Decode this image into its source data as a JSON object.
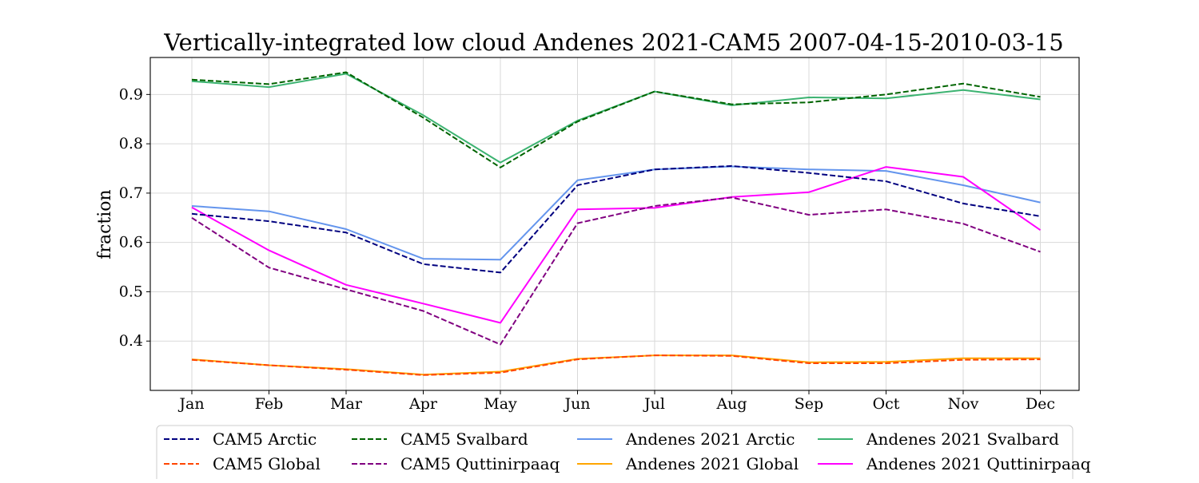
{
  "chart_data": {
    "type": "line",
    "title": "Vertically-integrated low cloud Andenes 2021-CAM5 2007-04-15-2010-03-15",
    "xlabel": "",
    "ylabel": "fraction",
    "categories": [
      "Jan",
      "Feb",
      "Mar",
      "Apr",
      "May",
      "Jun",
      "Jul",
      "Aug",
      "Sep",
      "Oct",
      "Nov",
      "Dec"
    ],
    "ylim": [
      0.3,
      0.975
    ],
    "yticks": [
      0.4,
      0.5,
      0.6,
      0.7,
      0.8,
      0.9
    ],
    "grid": true,
    "legend_placement": "bottom-center, outside plot",
    "series": [
      {
        "name": "CAM5 Arctic",
        "color": "#00007f",
        "dash": "dashed",
        "values": [
          0.658,
          0.643,
          0.62,
          0.556,
          0.539,
          0.716,
          0.748,
          0.755,
          0.741,
          0.724,
          0.679,
          0.653
        ]
      },
      {
        "name": "CAM5 Global",
        "color": "#ff4500",
        "dash": "dashed",
        "values": [
          0.362,
          0.351,
          0.342,
          0.331,
          0.336,
          0.363,
          0.371,
          0.37,
          0.355,
          0.355,
          0.362,
          0.363
        ]
      },
      {
        "name": "CAM5 Svalbard",
        "color": "#006400",
        "dash": "dashed",
        "values": [
          0.93,
          0.921,
          0.945,
          0.853,
          0.752,
          0.845,
          0.906,
          0.88,
          0.884,
          0.9,
          0.922,
          0.895
        ]
      },
      {
        "name": "CAM5 Quttinirpaaq",
        "color": "#800080",
        "dash": "dashed",
        "values": [
          0.65,
          0.549,
          0.505,
          0.461,
          0.393,
          0.639,
          0.674,
          0.691,
          0.656,
          0.667,
          0.638,
          0.581
        ]
      },
      {
        "name": "Andenes 2021 Arctic",
        "color": "#6495ed",
        "dash": "solid",
        "values": [
          0.674,
          0.663,
          0.627,
          0.567,
          0.565,
          0.726,
          0.748,
          0.754,
          0.748,
          0.745,
          0.716,
          0.681
        ]
      },
      {
        "name": "Andenes 2021 Global",
        "color": "#ffa500",
        "dash": "solid",
        "values": [
          0.363,
          0.351,
          0.343,
          0.332,
          0.338,
          0.364,
          0.371,
          0.371,
          0.357,
          0.358,
          0.365,
          0.365
        ]
      },
      {
        "name": "Andenes 2021 Svalbard",
        "color": "#3cb371",
        "dash": "solid",
        "values": [
          0.927,
          0.915,
          0.942,
          0.858,
          0.762,
          0.847,
          0.906,
          0.878,
          0.894,
          0.892,
          0.909,
          0.89
        ]
      },
      {
        "name": "Andenes 2021 Quttinirpaaq",
        "color": "#ff00ff",
        "dash": "solid",
        "values": [
          0.671,
          0.584,
          0.514,
          0.476,
          0.437,
          0.667,
          0.67,
          0.692,
          0.702,
          0.753,
          0.733,
          0.625
        ]
      }
    ]
  }
}
